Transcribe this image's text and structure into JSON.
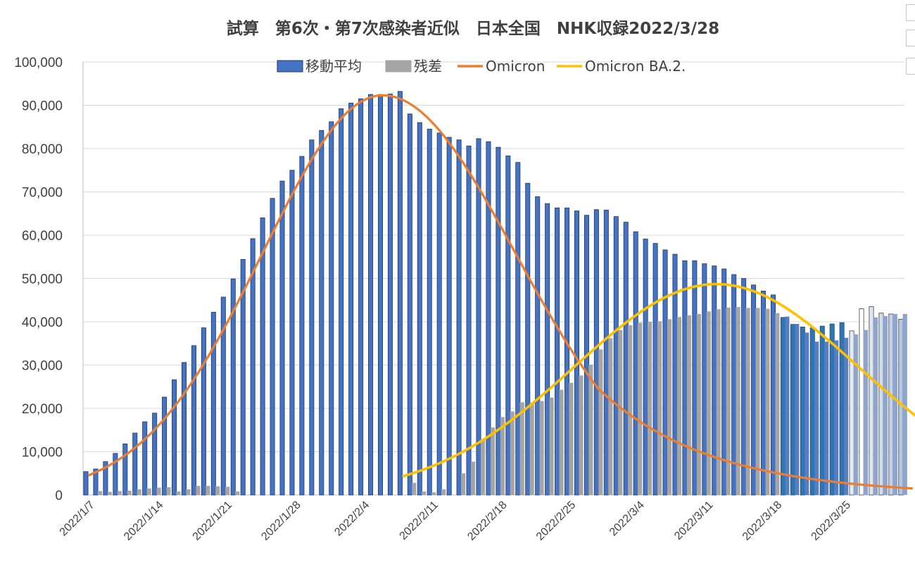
{
  "chart_data": {
    "type": "bar",
    "title": "試算　第6次・第7次感染者近似　日本全国　NHK収録2022/3/28",
    "ylim": [
      0,
      100000
    ],
    "yticks": [
      "0",
      "10,000",
      "20,000",
      "30,000",
      "40,000",
      "50,000",
      "60,000",
      "70,000",
      "80,000",
      "90,000",
      "100,000"
    ],
    "x_tick_labels": [
      {
        "day": 0,
        "label": "2022/1/7"
      },
      {
        "day": 7,
        "label": "2022/1/14"
      },
      {
        "day": 14,
        "label": "2022/1/21"
      },
      {
        "day": 21,
        "label": "2022/1/28"
      },
      {
        "day": 28,
        "label": "2022/2/4"
      },
      {
        "day": 35,
        "label": "2022/2/11"
      },
      {
        "day": 42,
        "label": "2022/2/18"
      },
      {
        "day": 49,
        "label": "2022/2/25"
      },
      {
        "day": 56,
        "label": "2022/3/4"
      },
      {
        "day": 63,
        "label": "2022/3/11"
      },
      {
        "day": 70,
        "label": "2022/3/18"
      },
      {
        "day": 77,
        "label": "2022/3/25"
      }
    ],
    "legend": [
      {
        "name": "移動平均",
        "kind": "bar",
        "color": "#4472c4"
      },
      {
        "name": "残差",
        "kind": "bar",
        "color": "#a5a5a5"
      },
      {
        "name": "Omicron",
        "kind": "line",
        "color": "#ed7d31"
      },
      {
        "name": "Omicron BA.2.",
        "kind": "line",
        "color": "#ffc000"
      }
    ],
    "moving_average": [
      5400,
      6000,
      7700,
      9600,
      11800,
      14300,
      16900,
      18900,
      22600,
      26600,
      30600,
      34500,
      38600,
      42200,
      45700,
      49900,
      54400,
      59200,
      64000,
      68500,
      72500,
      75000,
      78200,
      82000,
      84200,
      86200,
      89200,
      90500,
      91500,
      92500,
      92500,
      92600,
      93200,
      88000,
      86000,
      84500,
      83600,
      82600,
      82000,
      80600,
      82300,
      81600,
      80300,
      78300,
      76800,
      72000,
      68900,
      67300,
      66300,
      66300,
      65600,
      64600,
      65900,
      65800,
      64300,
      63000,
      60800,
      59100,
      58100,
      56600,
      55600,
      54100,
      54100,
      53400,
      52900,
      52200,
      50900,
      50000,
      48500,
      47100,
      46200,
      41000,
      39400,
      38800,
      38600,
      39000,
      39500,
      39800,
      37900,
      43000,
      43500,
      42000,
      41800,
      40600
    ],
    "residual": [
      0,
      900,
      700,
      900,
      1000,
      1300,
      1500,
      1700,
      1800,
      800,
      1300,
      2100,
      2100,
      2000,
      1900,
      800,
      0,
      0,
      0,
      0,
      0,
      0,
      0,
      0,
      0,
      0,
      0,
      0,
      0,
      0,
      0,
      0,
      0,
      2800,
      800,
      600,
      1300,
      0,
      5000,
      7700,
      12900,
      15600,
      18000,
      19300,
      21400,
      21300,
      21700,
      22500,
      24300,
      25900,
      27600,
      30100,
      33600,
      36200,
      38100,
      39200,
      39800,
      40000,
      40100,
      40600,
      41100,
      41500,
      41800,
      42400,
      42900,
      43300,
      43400,
      43200,
      43200,
      43000,
      42000,
      41200,
      39500,
      37500,
      35400,
      35400,
      35700,
      36300,
      37100,
      38100,
      41000,
      41300,
      41800,
      41800
    ],
    "omicron_curve": {
      "peak_day": 30,
      "peak_value": 92300,
      "sigma_left": 12.2,
      "sigma_right": 13.5,
      "tail_floor_day": 80,
      "end_value": 900
    },
    "ba2_curve": {
      "start_day": 32,
      "end_day": 85,
      "peak_day": 64,
      "peak_value": 48700,
      "sigma": 14.5
    }
  }
}
